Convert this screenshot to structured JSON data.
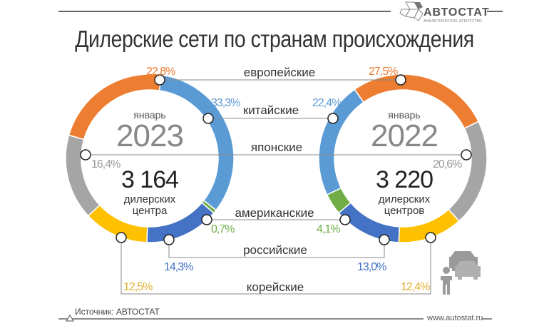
{
  "header": {
    "title": "Дилерские сети по странам происхождения",
    "logo": {
      "name": "АВТОСТАТ",
      "subtitle": "АНАЛИТИЧЕСКОЕ АГЕНТСТВО"
    }
  },
  "footer": {
    "source": "Источник: АВТОСТАТ",
    "url": "www.autostat.ru"
  },
  "left": {
    "month": "январь",
    "year": "2023",
    "total": "3 164",
    "unit_line1": "дилерских",
    "unit_line2": "центра"
  },
  "right": {
    "month": "январь",
    "year": "2022",
    "total": "3 220",
    "unit_line1": "дилерских",
    "unit_line2": "центров"
  },
  "categories": {
    "european": "европейские",
    "chinese": "китайские",
    "japanese": "японские",
    "american": "американские",
    "russian": "российские",
    "korean": "корейские"
  },
  "labels": {
    "l_european": "22,8%",
    "l_chinese": "33,3%",
    "l_japanese": "16,4%",
    "l_american": "0,7%",
    "l_russian": "14,3%",
    "l_korean": "12,5%",
    "r_european": "27,5%",
    "r_chinese": "22,4%",
    "r_japanese": "20,6%",
    "r_american": "4,1%",
    "r_russian": "13,0%",
    "r_korean": "12,4%"
  },
  "colors": {
    "european": "#ED7D31",
    "chinese": "#5B9BD5",
    "japanese": "#A5A5A5",
    "american": "#70AD47",
    "russian": "#4472C4",
    "korean": "#FFC000"
  },
  "chart_data": {
    "type": "pie",
    "title": "Дилерские сети по странам происхождения",
    "categories": [
      "европейские",
      "китайские",
      "японские",
      "американские",
      "российские",
      "корейские"
    ],
    "series": [
      {
        "name": "январь 2023",
        "total_dealers": 3164,
        "values": [
          22.8,
          33.3,
          16.4,
          0.7,
          14.3,
          12.5
        ]
      },
      {
        "name": "январь 2022",
        "total_dealers": 3220,
        "values": [
          27.5,
          22.4,
          20.6,
          4.1,
          13.0,
          12.4
        ]
      }
    ],
    "unit": "%",
    "source": "АВТОСТАТ"
  }
}
